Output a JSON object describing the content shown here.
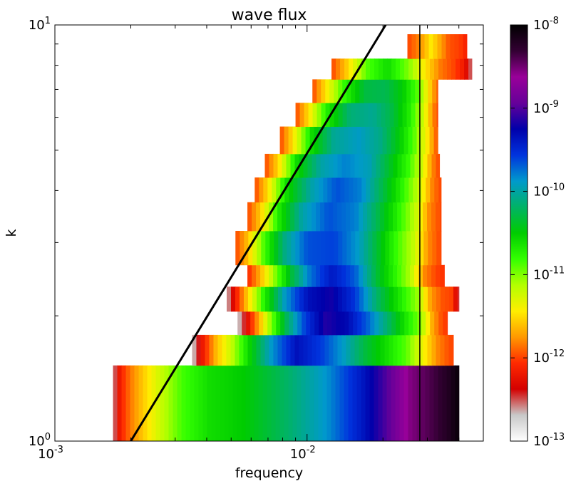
{
  "chart_data": {
    "type": "heatmap",
    "title": "wave flux",
    "xlabel": "frequency",
    "ylabel": "k",
    "xscale": "log",
    "yscale": "log",
    "xlim": [
      0.001,
      0.05
    ],
    "ylim": [
      1,
      10
    ],
    "x_ticks": [
      {
        "value": 0.001,
        "base": "10",
        "exp": "-3"
      },
      {
        "value": 0.01,
        "base": "10",
        "exp": "-2"
      }
    ],
    "y_ticks": [
      {
        "value": 1,
        "base": "10",
        "exp": "0"
      },
      {
        "value": 10,
        "base": "10",
        "exp": "1"
      }
    ],
    "colorbar": {
      "scale": "log",
      "min": 1e-13,
      "max": 1e-08,
      "ticks": [
        {
          "value": 1e-13,
          "base": "10",
          "exp": "-13"
        },
        {
          "value": 1e-12,
          "base": "10",
          "exp": "-12"
        },
        {
          "value": 1e-11,
          "base": "10",
          "exp": "-11"
        },
        {
          "value": 1e-10,
          "base": "10",
          "exp": "-10"
        },
        {
          "value": 1e-09,
          "base": "10",
          "exp": "-9"
        },
        {
          "value": 1e-08,
          "base": "10",
          "exp": "-8"
        }
      ],
      "colors": [
        "#ffffff",
        "#c8c8c8",
        "#d40000",
        "#ff2a00",
        "#ff9900",
        "#ffee00",
        "#b3ff00",
        "#33ff00",
        "#00cc00",
        "#00b366",
        "#0099cc",
        "#0033dd",
        "#0000aa",
        "#660099",
        "#990099",
        "#330033",
        "#000000"
      ]
    },
    "bands": [
      {
        "k": [
          1.0,
          1.52
        ],
        "f": [
          0.0017,
          0.04
        ],
        "profile": [
          [
            0,
            0.7
          ],
          [
            0.02,
            1.7
          ],
          [
            0.05,
            2.3
          ],
          [
            0.09,
            2.9
          ],
          [
            0.14,
            3.6
          ],
          [
            0.2,
            4.3
          ],
          [
            0.28,
            4.8
          ],
          [
            0.38,
            5.0
          ],
          [
            0.5,
            5.6
          ],
          [
            0.62,
            6.3
          ],
          [
            0.72,
            7.2
          ],
          [
            0.8,
            8.1
          ],
          [
            0.86,
            8.9
          ],
          [
            0.93,
            9.3
          ],
          [
            0.97,
            9.6
          ],
          [
            1,
            9.9
          ]
        ]
      },
      {
        "k": [
          1.52,
          1.8
        ],
        "f": [
          0.0035,
          0.038
        ],
        "profile": [
          [
            0,
            0.5
          ],
          [
            0.04,
            1.6
          ],
          [
            0.09,
            2.7
          ],
          [
            0.15,
            3.6
          ],
          [
            0.22,
            4.9
          ],
          [
            0.3,
            6.2
          ],
          [
            0.4,
            7.3
          ],
          [
            0.5,
            6.8
          ],
          [
            0.58,
            6.2
          ],
          [
            0.66,
            5.4
          ],
          [
            0.74,
            4.8
          ],
          [
            0.82,
            4.2
          ],
          [
            0.88,
            3.3
          ],
          [
            0.94,
            2.4
          ],
          [
            0.98,
            2.1
          ],
          [
            1,
            2.0
          ]
        ]
      },
      {
        "k": [
          1.8,
          2.05
        ],
        "f": [
          0.0053,
          0.036
        ],
        "profile": [
          [
            0,
            0.5
          ],
          [
            0.05,
            1.5
          ],
          [
            0.1,
            2.6
          ],
          [
            0.16,
            4.0
          ],
          [
            0.23,
            5.5
          ],
          [
            0.32,
            6.8
          ],
          [
            0.42,
            7.7
          ],
          [
            0.52,
            7.4
          ],
          [
            0.62,
            6.6
          ],
          [
            0.72,
            5.6
          ],
          [
            0.8,
            4.7
          ],
          [
            0.87,
            4.0
          ],
          [
            0.93,
            2.6
          ],
          [
            0.97,
            2.1
          ],
          [
            1,
            1.9
          ]
        ]
      },
      {
        "k": [
          2.05,
          2.35
        ],
        "f": [
          0.0048,
          0.04
        ],
        "profile": [
          [
            0,
            0.6
          ],
          [
            0.04,
            1.7
          ],
          [
            0.09,
            2.9
          ],
          [
            0.16,
            4.5
          ],
          [
            0.25,
            6.2
          ],
          [
            0.35,
            7.3
          ],
          [
            0.45,
            7.6
          ],
          [
            0.55,
            6.9
          ],
          [
            0.65,
            5.6
          ],
          [
            0.74,
            4.7
          ],
          [
            0.82,
            3.9
          ],
          [
            0.88,
            2.5
          ],
          [
            0.93,
            2.1
          ],
          [
            0.97,
            2.0
          ],
          [
            1,
            1.0
          ]
        ]
      },
      {
        "k": [
          2.35,
          2.65
        ],
        "f": [
          0.0058,
          0.035
        ],
        "profile": [
          [
            0,
            1.8
          ],
          [
            0.06,
            2.6
          ],
          [
            0.13,
            3.8
          ],
          [
            0.22,
            5.3
          ],
          [
            0.32,
            6.5
          ],
          [
            0.43,
            7.2
          ],
          [
            0.55,
            6.6
          ],
          [
            0.66,
            5.3
          ],
          [
            0.75,
            4.5
          ],
          [
            0.83,
            3.7
          ],
          [
            0.9,
            2.4
          ],
          [
            0.96,
            2.0
          ],
          [
            1,
            1.9
          ]
        ]
      },
      {
        "k": [
          2.65,
          3.2
        ],
        "f": [
          0.0052,
          0.034
        ],
        "profile": [
          [
            0,
            2.0
          ],
          [
            0.06,
            2.8
          ],
          [
            0.14,
            4.3
          ],
          [
            0.24,
            5.8
          ],
          [
            0.35,
            6.7
          ],
          [
            0.48,
            6.8
          ],
          [
            0.6,
            6.2
          ],
          [
            0.7,
            5.2
          ],
          [
            0.79,
            4.3
          ],
          [
            0.87,
            3.6
          ],
          [
            0.94,
            2.4
          ],
          [
            1,
            2.0
          ]
        ]
      },
      {
        "k": [
          3.2,
          3.75
        ],
        "f": [
          0.0058,
          0.034
        ],
        "profile": [
          [
            0,
            2.0
          ],
          [
            0.07,
            2.9
          ],
          [
            0.16,
            4.6
          ],
          [
            0.28,
            6.0
          ],
          [
            0.42,
            6.7
          ],
          [
            0.56,
            6.4
          ],
          [
            0.68,
            5.4
          ],
          [
            0.78,
            4.5
          ],
          [
            0.87,
            3.6
          ],
          [
            0.94,
            2.4
          ],
          [
            1,
            2.0
          ]
        ]
      },
      {
        "k": [
          3.75,
          4.3
        ],
        "f": [
          0.0062,
          0.034
        ],
        "profile": [
          [
            0,
            2.0
          ],
          [
            0.07,
            3.0
          ],
          [
            0.17,
            4.8
          ],
          [
            0.3,
            6.0
          ],
          [
            0.44,
            6.7
          ],
          [
            0.57,
            6.4
          ],
          [
            0.69,
            5.4
          ],
          [
            0.79,
            4.5
          ],
          [
            0.88,
            3.6
          ],
          [
            0.95,
            2.4
          ],
          [
            1,
            2.0
          ]
        ]
      },
      {
        "k": [
          4.3,
          4.9
        ],
        "f": [
          0.0068,
          0.0335
        ],
        "profile": [
          [
            0,
            2.0
          ],
          [
            0.08,
            3.0
          ],
          [
            0.18,
            4.8
          ],
          [
            0.32,
            6.0
          ],
          [
            0.46,
            6.4
          ],
          [
            0.6,
            6.1
          ],
          [
            0.72,
            5.2
          ],
          [
            0.82,
            4.4
          ],
          [
            0.9,
            3.5
          ],
          [
            0.96,
            2.4
          ],
          [
            1,
            2.0
          ]
        ]
      },
      {
        "k": [
          4.9,
          5.7
        ],
        "f": [
          0.0078,
          0.033
        ],
        "profile": [
          [
            0,
            2.0
          ],
          [
            0.08,
            3.0
          ],
          [
            0.2,
            4.8
          ],
          [
            0.34,
            5.9
          ],
          [
            0.5,
            6.2
          ],
          [
            0.64,
            5.8
          ],
          [
            0.76,
            5.0
          ],
          [
            0.86,
            4.1
          ],
          [
            0.94,
            3.0
          ],
          [
            1,
            2.0
          ]
        ]
      },
      {
        "k": [
          5.7,
          6.5
        ],
        "f": [
          0.009,
          0.033
        ],
        "profile": [
          [
            0,
            2.0
          ],
          [
            0.09,
            3.0
          ],
          [
            0.22,
            4.6
          ],
          [
            0.38,
            5.7
          ],
          [
            0.54,
            5.9
          ],
          [
            0.68,
            5.4
          ],
          [
            0.8,
            4.6
          ],
          [
            0.9,
            3.5
          ],
          [
            0.96,
            2.5
          ],
          [
            1,
            2.0
          ]
        ]
      },
      {
        "k": [
          6.5,
          7.4
        ],
        "f": [
          0.0105,
          0.033
        ],
        "profile": [
          [
            0,
            2.0
          ],
          [
            0.1,
            3.0
          ],
          [
            0.25,
            4.4
          ],
          [
            0.42,
            5.4
          ],
          [
            0.58,
            5.5
          ],
          [
            0.72,
            5.0
          ],
          [
            0.84,
            4.2
          ],
          [
            0.93,
            3.0
          ],
          [
            1,
            2.1
          ]
        ]
      },
      {
        "k": [
          7.4,
          8.3
        ],
        "f": [
          0.0125,
          0.045
        ],
        "profile": [
          [
            0,
            2.0
          ],
          [
            0.1,
            2.8
          ],
          [
            0.25,
            4.2
          ],
          [
            0.4,
            4.8
          ],
          [
            0.55,
            4.0
          ],
          [
            0.68,
            3.0
          ],
          [
            0.78,
            2.3
          ],
          [
            0.88,
            2.0
          ],
          [
            0.95,
            1.6
          ],
          [
            1,
            0.8
          ]
        ]
      },
      {
        "k": [
          8.3,
          9.5
        ],
        "f": [
          0.025,
          0.043
        ],
        "profile": [
          [
            0,
            2.0
          ],
          [
            0.2,
            2.4
          ],
          [
            0.4,
            3.1
          ],
          [
            0.55,
            2.6
          ],
          [
            0.7,
            2.1
          ],
          [
            0.85,
            2.0
          ],
          [
            0.95,
            1.9
          ],
          [
            1,
            1.6
          ]
        ]
      }
    ],
    "lines": [
      {
        "from": [
          0.002,
          1
        ],
        "to": [
          0.0205,
          10
        ],
        "color": "#000000",
        "width": 3
      },
      {
        "from": [
          0.028,
          1
        ],
        "to": [
          0.028,
          10
        ],
        "color": "#000000",
        "width": 1.5
      }
    ]
  }
}
